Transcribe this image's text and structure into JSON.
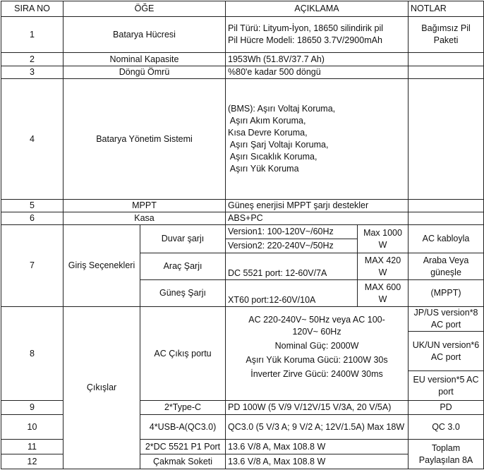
{
  "headers": {
    "no": "SIRA NO",
    "item": "ÖĞE",
    "desc": "AÇIKLAMA",
    "notes": "NOTLAR"
  },
  "r1": {
    "no": "1",
    "item": "Batarya Hücresi",
    "desc1": "Pil Türü: Lityum-İyon, 18650 silindirik pil",
    "desc2": "Pil Hücre Modeli: 18650 3.7V/2900mAh",
    "notes": "Bağımsız Pil Paketi"
  },
  "r2": {
    "no": "2",
    "item": "Nominal Kapasite",
    "desc": "1953Wh (51.8V/37.7 Ah)"
  },
  "r3": {
    "no": "3",
    "item": "Döngü Ömrü",
    "desc": "%80'e kadar 500 döngü"
  },
  "r4": {
    "no": "4",
    "item": "Batarya Yönetim Sistemi",
    "lines": [
      "(BMS): Aşırı Voltaj Koruma,",
      " Aşırı Akım Koruma,",
      "Kısa Devre Koruma,",
      " Aşırı Şarj Voltajı Koruma,",
      " Aşırı Sıcaklık Koruma,",
      " Aşırı Yük Koruma"
    ]
  },
  "r5": {
    "no": "5",
    "item": "MPPT",
    "desc": "Güneş enerjisi MPPT şarjı destekler"
  },
  "r6": {
    "no": "6",
    "item": "Kasa",
    "desc": "ABS+PC"
  },
  "r7": {
    "no": "7",
    "item": "Giriş Seçenekleri",
    "wall": {
      "label": "Duvar şarjı",
      "v1": "Version1: 100-120V~/60Hz",
      "v2": "Version2: 220-240V~/50Hz",
      "max": "Max 1000 W",
      "notes": "AC kabloyla"
    },
    "car": {
      "label": "Araç Şarjı",
      "desc": "DC 5521 port: 12-60V/7A",
      "max": "MAX 420 W",
      "notes": "Araba Veya güneşle"
    },
    "solar": {
      "label": "Güneş Şarjı",
      "desc": "XT60 port:12-60V/10A",
      "max": "MAX 600 W",
      "notes": "(MPPT)"
    }
  },
  "r8": {
    "no": "8",
    "group": "Çıkışlar",
    "item": "AC Çıkış portu",
    "lines": [
      "AC 220-240V~ 50Hz veya AC 100-120V~ 60Hz",
      "Nominal Güç: 2000W",
      "Aşırı Yük Koruma Gücü: 2100W 30s",
      "İnverter Zirve Gücü: 2400W 30ms"
    ],
    "notes": [
      "JP/US version*8 AC port",
      "UK/UN version*6 AC port",
      "EU version*5 AC port"
    ]
  },
  "r9": {
    "no": "9",
    "item": "2*Type-C",
    "desc": "PD 100W (5 V/9 V/12V/15 V/3A, 20 V/5A)",
    "notes": "PD"
  },
  "r10": {
    "no": "10",
    "item": "4*USB-A(QC3.0)",
    "desc": "QC3.0 (5 V/3 A; 9 V/2 A; 12V/1.5A) Max 18W",
    "notes": "QC 3.0"
  },
  "r11": {
    "no": "11",
    "item": "2*DC 5521 P1 Port",
    "desc": "13.6 V/8 A, Max 108.8 W",
    "notes": "Toplam Paylaşılan 8A"
  },
  "r12": {
    "no": "12",
    "item": "Çakmak Soketi",
    "desc": "13.6 V/8 A, Max 108.8 W"
  }
}
